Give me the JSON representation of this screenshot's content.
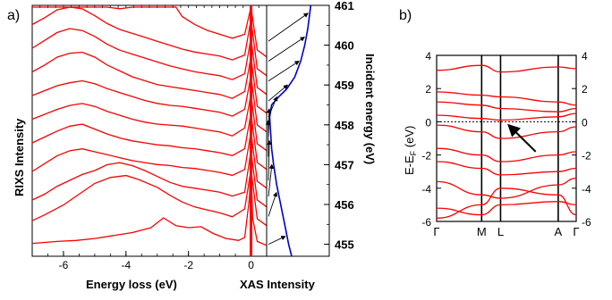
{
  "chart_data": [
    {
      "panel_label": "a)",
      "type": "line",
      "xlabel": "Energy loss (eV)",
      "ylabel": "RIXS Intensity",
      "xlim": [
        -7,
        0.5
      ],
      "x_ticks": [
        "-6",
        "-4",
        "-2",
        "0"
      ],
      "series_color": "#ff0000",
      "series": [
        {
          "x_points": [
            -7,
            -6.6,
            -6.2,
            -5.6,
            -5.0,
            -4.4,
            -3.8,
            -3.2,
            -2.8,
            -2.4,
            -2.0,
            -1.6,
            -1.2,
            -0.8,
            -0.4,
            -0.2,
            -0.05,
            0,
            0.05,
            0.2,
            0.5
          ],
          "y_points": [
            0.4,
            0.5,
            0.6,
            0.7,
            0.9,
            1.2,
            1.5,
            2.0,
            3.0,
            2.2,
            2.0,
            2.1,
            1.4,
            0.9,
            0.7,
            1.0,
            5.0,
            9.0,
            3.0,
            0.6,
            0.2
          ]
        },
        {
          "x_points": [
            -7,
            -6.6,
            -6.0,
            -5.5,
            -5.0,
            -4.5,
            -4.0,
            -3.6,
            -3.0,
            -2.6,
            -2.2,
            -1.8,
            -1.4,
            -1.0,
            -0.6,
            -0.2,
            0,
            0.2,
            0.5
          ],
          "y_points": [
            0.8,
            1.4,
            2.4,
            3.5,
            4.6,
            5.2,
            5.4,
            5.0,
            4.2,
            3.4,
            2.7,
            2.2,
            1.9,
            1.6,
            1.2,
            2.0,
            6.0,
            1.0,
            0.3
          ]
        },
        {
          "x_points": [
            -7,
            -6.6,
            -6.2,
            -5.8,
            -5.4,
            -5.0,
            -4.6,
            -4.2,
            -3.8,
            -3.4,
            -3.0,
            -2.6,
            -2.2,
            -1.8,
            -1.4,
            -1.0,
            -0.6,
            -0.2,
            0,
            0.2,
            0.5
          ],
          "y_points": [
            1.0,
            1.6,
            2.4,
            3.0,
            3.6,
            4.0,
            4.6,
            4.8,
            4.5,
            4.0,
            3.4,
            2.8,
            2.4,
            2.2,
            2.0,
            1.8,
            1.4,
            1.8,
            6.0,
            1.0,
            0.3
          ]
        },
        {
          "x_points": [
            -7,
            -6.6,
            -6.2,
            -5.8,
            -5.4,
            -5.0,
            -4.6,
            -4.2,
            -3.8,
            -3.4,
            -3.0,
            -2.6,
            -2.2,
            -1.8,
            -1.4,
            -1.0,
            -0.6,
            -0.2,
            0,
            0.2,
            0.5
          ],
          "y_points": [
            2.0,
            2.8,
            3.6,
            4.1,
            4.3,
            4.0,
            3.7,
            3.4,
            3.1,
            2.9,
            2.7,
            2.6,
            2.4,
            2.3,
            2.1,
            1.9,
            1.6,
            2.2,
            6.0,
            1.0,
            0.3
          ]
        },
        {
          "x_points": [
            -7,
            -6.6,
            -6.2,
            -5.8,
            -5.4,
            -5.0,
            -4.6,
            -4.2,
            -3.8,
            -3.4,
            -3.0,
            -2.6,
            -2.2,
            -1.8,
            -1.4,
            -1.0,
            -0.6,
            -0.2,
            0,
            0.2,
            0.5
          ],
          "y_points": [
            3.0,
            3.6,
            4.2,
            4.7,
            4.9,
            4.4,
            3.9,
            3.5,
            3.2,
            3.0,
            2.8,
            2.7,
            2.5,
            2.4,
            2.2,
            2.0,
            1.7,
            2.4,
            6.0,
            1.0,
            0.3
          ]
        },
        {
          "x_points": [
            -7,
            -6.6,
            -6.2,
            -5.8,
            -5.4,
            -5.0,
            -4.6,
            -4.2,
            -3.8,
            -3.4,
            -3.0,
            -2.6,
            -2.2,
            -1.8,
            -1.4,
            -1.0,
            -0.6,
            -0.2,
            0,
            0.2,
            0.5
          ],
          "y_points": [
            3.5,
            4.0,
            4.5,
            4.9,
            5.1,
            4.8,
            4.3,
            3.9,
            3.5,
            3.2,
            3.0,
            2.9,
            2.8,
            2.6,
            2.4,
            2.2,
            1.8,
            2.6,
            6.0,
            1.0,
            0.3
          ]
        },
        {
          "x_points": [
            -7,
            -6.6,
            -6.2,
            -5.8,
            -5.4,
            -5.0,
            -4.6,
            -4.2,
            -3.8,
            -3.4,
            -3.0,
            -2.6,
            -2.2,
            -1.8,
            -1.4,
            -1.0,
            -0.6,
            -0.2,
            0,
            0.2,
            0.5
          ],
          "y_points": [
            4.0,
            4.5,
            5.0,
            5.3,
            5.5,
            5.2,
            4.7,
            4.3,
            3.9,
            3.5,
            3.2,
            3.0,
            2.9,
            2.7,
            2.5,
            2.3,
            1.9,
            2.6,
            6.0,
            1.0,
            0.3
          ]
        },
        {
          "x_points": [
            -7,
            -6.6,
            -6.2,
            -5.8,
            -5.4,
            -5.0,
            -4.6,
            -4.2,
            -3.8,
            -3.4,
            -3.0,
            -2.6,
            -2.2,
            -1.8,
            -1.4,
            -1.0,
            -0.6,
            -0.2,
            0,
            0.2,
            0.5
          ],
          "y_points": [
            4.5,
            5.2,
            6.0,
            6.4,
            6.5,
            6.0,
            5.2,
            4.6,
            4.0,
            3.6,
            3.2,
            3.0,
            2.8,
            2.6,
            2.4,
            2.2,
            1.8,
            2.5,
            6.0,
            1.0,
            0.3
          ]
        },
        {
          "x_points": [
            -7,
            -6.6,
            -6.2,
            -5.8,
            -5.4,
            -5.0,
            -4.6,
            -4.2,
            -3.8,
            -3.4,
            -3.0,
            -2.6,
            -2.2,
            -1.8,
            -1.4,
            -1.0,
            -0.6,
            -0.2,
            0,
            0.2,
            0.5
          ],
          "y_points": [
            5.0,
            5.8,
            6.6,
            7.0,
            6.8,
            6.2,
            5.4,
            4.8,
            4.4,
            4.0,
            3.6,
            3.2,
            2.9,
            2.6,
            2.4,
            2.2,
            1.8,
            2.4,
            6.0,
            1.0,
            0.3
          ]
        },
        {
          "x_points": [
            -7,
            -6.6,
            -6.2,
            -5.8,
            -5.4,
            -5.0,
            -4.6,
            -4.2,
            -3.8,
            -3.4,
            -3.0,
            -2.6,
            -2.2,
            -1.8,
            -1.4,
            -1.0,
            -0.6,
            -0.2,
            0,
            0.2,
            0.5
          ],
          "y_points": [
            5.5,
            6.2,
            7.0,
            7.3,
            7.1,
            6.4,
            5.6,
            5.0,
            4.6,
            4.2,
            3.8,
            3.4,
            3.0,
            2.7,
            2.5,
            2.3,
            1.9,
            2.4,
            6.0,
            1.0,
            0.3
          ]
        },
        {
          "x_points": [
            -7,
            -6.6,
            -6.2,
            -5.8,
            -5.4,
            -5.0,
            -4.6,
            -4.2,
            -3.8,
            -3.4,
            -3.0,
            -2.8,
            -2.6,
            -2.4,
            -2.2,
            -1.8,
            -1.4,
            -1.0,
            -0.6,
            -0.2,
            0,
            0.2,
            0.5
          ],
          "y_points": [
            6.0,
            7.0,
            7.6,
            7.4,
            6.8,
            6.0,
            5.4,
            5.2,
            5.6,
            6.2,
            7.0,
            7.4,
            6.6,
            5.4,
            4.4,
            3.6,
            3.0,
            2.6,
            2.2,
            2.6,
            7.0,
            1.0,
            0.3
          ]
        }
      ]
    },
    {
      "type": "line",
      "xlabel": "XAS Intensity",
      "y2label": "Incident energy (eV)",
      "ylim": [
        454.7,
        461
      ],
      "y_ticks": [
        "455",
        "456",
        "457",
        "458",
        "459",
        "460",
        "461"
      ],
      "series_color": "#0000cc",
      "curve_points": [
        [
          0.25,
          454.7
        ],
        [
          0.22,
          455.0
        ],
        [
          0.18,
          455.5
        ],
        [
          0.14,
          456.0
        ],
        [
          0.1,
          456.5
        ],
        [
          0.07,
          457.0
        ],
        [
          0.05,
          457.4
        ],
        [
          0.04,
          457.8
        ],
        [
          0.03,
          458.2
        ],
        [
          0.05,
          458.5
        ],
        [
          0.12,
          458.7
        ],
        [
          0.2,
          458.9
        ],
        [
          0.28,
          459.2
        ],
        [
          0.34,
          459.6
        ],
        [
          0.38,
          460.0
        ],
        [
          0.41,
          460.4
        ],
        [
          0.43,
          460.8
        ],
        [
          0.44,
          461.0
        ]
      ],
      "arrows": [
        {
          "from_energy": 455.0,
          "to_energy": 455.2
        },
        {
          "from_energy": 455.7,
          "to_energy": 456.3
        },
        {
          "from_energy": 456.2,
          "to_energy": 457.0
        },
        {
          "from_energy": 456.6,
          "to_energy": 457.6
        },
        {
          "from_energy": 457.2,
          "to_energy": 458.1
        },
        {
          "from_energy": 457.7,
          "to_energy": 458.4
        },
        {
          "from_energy": 458.2,
          "to_energy": 458.7
        },
        {
          "from_energy": 458.6,
          "to_energy": 459.0
        },
        {
          "from_energy": 459.1,
          "to_energy": 459.6
        },
        {
          "from_energy": 459.6,
          "to_energy": 460.2
        },
        {
          "from_energy": 460.1,
          "to_energy": 460.8
        }
      ]
    },
    {
      "panel_label": "b)",
      "type": "line",
      "ylabel": "E-E",
      "ylabel_sub": "F",
      "ylabel_unit": " (eV)",
      "ylim": [
        -6,
        4
      ],
      "y_ticks_left": [
        "4",
        "2",
        "0",
        "-2",
        "-4",
        "-6"
      ],
      "y_ticks_right": [
        "4",
        "2",
        "0",
        "-2",
        "-4",
        "-6"
      ],
      "k_labels": [
        "Γ",
        "M",
        "L",
        "A",
        "Γ"
      ],
      "k_positions": [
        0,
        1,
        1.42,
        2.7,
        3.1
      ],
      "fermi_level": 0,
      "series_color": "#ff0000",
      "bands": [
        [
          3.1,
          3.4,
          3.0,
          3.3,
          3.2
        ],
        [
          1.8,
          1.6,
          1.5,
          1.2,
          1.0
        ],
        [
          1.2,
          1.0,
          0.8,
          0.6,
          0.8
        ],
        [
          0.4,
          0.2,
          0.1,
          0.3,
          0.5
        ],
        [
          -0.2,
          -0.6,
          -1.0,
          -0.6,
          -0.3
        ],
        [
          -1.6,
          -2.0,
          -2.4,
          -2.0,
          -1.8
        ],
        [
          -2.4,
          -2.8,
          -3.2,
          -3.0,
          -2.8
        ],
        [
          -3.6,
          -4.4,
          -4.6,
          -3.8,
          -3.4
        ],
        [
          -5.2,
          -5.6,
          -5.0,
          -4.8,
          -5.0
        ],
        [
          -5.8,
          -5.0,
          -4.0,
          -4.4,
          -5.6
        ]
      ],
      "annotation_arrow": {
        "from": [
          2.2,
          -1.8
        ],
        "to": [
          1.6,
          -0.2
        ]
      }
    }
  ]
}
